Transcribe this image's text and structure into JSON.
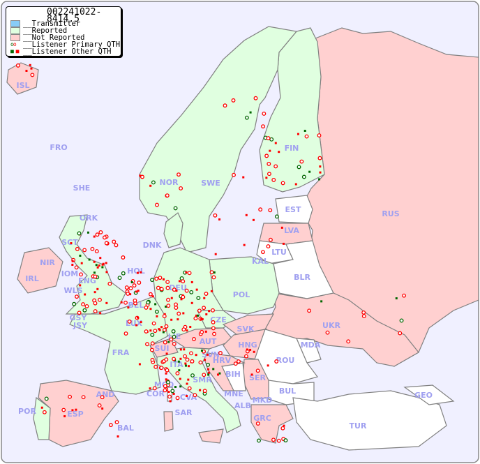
{
  "legend": {
    "title": "002241022-8414.5",
    "items": [
      {
        "label": "__Transmitter",
        "color": "#88ccf8"
      },
      {
        "label": "__Reported",
        "color": "#e0ffe0"
      },
      {
        "label": "__Not Reported",
        "color": "#ffd0d0"
      },
      {
        "label": "__Listener Primary QTH",
        "colors": [
          "#006600",
          "#ff0000"
        ],
        "icon": "open-circle"
      },
      {
        "label": "__Listener Other QTH",
        "colors": [
          "#006600",
          "#ff0000"
        ],
        "icon": "filled-square"
      }
    ]
  },
  "colors": {
    "sea": "#f0f0ff",
    "reported": "#e0ffe0",
    "not_reported": "#ffd0d0",
    "no_data": "#ffffff",
    "label": "#a0a0f0",
    "listener": "#ff0000",
    "listener_alt": "#006600"
  },
  "labels": {
    "ISL": "ISL",
    "FRO": "FRO",
    "SHE": "SHE",
    "ORK": "ORK",
    "NOR": "NOR",
    "SWE": "SWE",
    "FIN": "FIN",
    "EST": "EST",
    "RUS": "RUS",
    "LVA": "LVA",
    "LTU": "LTU",
    "KAL": "KAL",
    "BLR": "BLR",
    "DNK": "DNK",
    "SCT": "SCT",
    "NIR": "NIR",
    "IRL": "IRL",
    "IOM": "IOM",
    "ENG": "ENG",
    "WLS": "WLS",
    "HOL": "HOL",
    "BEL": "BEL",
    "DEU": "DEU",
    "POL": "POL",
    "GSY": "GSY",
    "JSY": "JSY",
    "LUX": "LUX",
    "CZE": "CZE",
    "SVK": "SVK",
    "UKR": "UKR",
    "FRA": "FRA",
    "SUI": "SUI",
    "LIE": "LIE",
    "AUT": "AUT",
    "HNG": "HNG",
    "MDA": "MDA",
    "ROU": "ROU",
    "SVN": "SVN",
    "HRV": "HRV",
    "ITA": "ITA",
    "SMR": "SMR",
    "BIH": "BIH",
    "SER": "SER",
    "MCO": "MCO",
    "COR": "COR",
    "CVA": "CVA",
    "MNE": "MNE",
    "BUL": "BUL",
    "GEO": "GEO",
    "AND": "AND",
    "ALB": "ALB",
    "MKD": "MKD",
    "POR": "POR",
    "ESP": "ESP",
    "BAL": "BAL",
    "SAR": "SAR",
    "GRC": "GRC",
    "TUR": "TUR"
  }
}
